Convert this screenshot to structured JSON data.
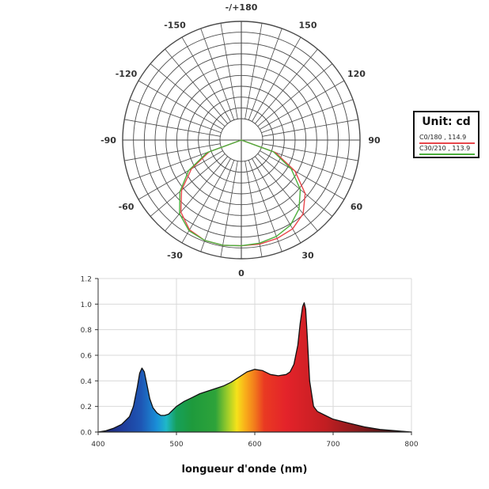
{
  "colors": {
    "polar_c0": "#e8474c",
    "polar_c30": "#4caf3c",
    "grid": "#4a4a4a"
  },
  "chart_data": [
    {
      "type": "polar",
      "unit_label": "Unit: cd",
      "angle_labels": [
        {
          "angle": 180,
          "text": "-/+180"
        },
        {
          "angle": 150,
          "text": "150"
        },
        {
          "angle": -150,
          "text": "-150"
        },
        {
          "angle": 120,
          "text": "120"
        },
        {
          "angle": -120,
          "text": "-120"
        },
        {
          "angle": 90,
          "text": "90"
        },
        {
          "angle": -90,
          "text": "-90"
        },
        {
          "angle": 60,
          "text": "60"
        },
        {
          "angle": -60,
          "text": "-60"
        },
        {
          "angle": 30,
          "text": "30"
        },
        {
          "angle": -30,
          "text": "-30"
        },
        {
          "angle": 0,
          "text": "0"
        }
      ],
      "series": [
        {
          "name": "C0/180 , 114.9",
          "color": "#e8474c",
          "angles": [
            -70,
            -60,
            -50,
            -40,
            -30,
            -20,
            -10,
            0,
            10,
            20,
            30,
            40,
            50,
            60,
            70
          ],
          "values": [
            0.32,
            0.54,
            0.73,
            0.88,
            0.97,
            1.0,
            1.0,
            0.99,
            0.99,
            0.98,
            0.96,
            0.9,
            0.78,
            0.58,
            0.34
          ]
        },
        {
          "name": "C30/210 , 113.9",
          "color": "#4caf3c",
          "angles": [
            -70,
            -60,
            -50,
            -40,
            -30,
            -20,
            -10,
            0,
            10,
            20,
            30,
            40,
            50,
            60,
            70
          ],
          "values": [
            0.34,
            0.57,
            0.75,
            0.9,
            0.98,
            1.0,
            1.0,
            0.99,
            0.98,
            0.96,
            0.92,
            0.84,
            0.72,
            0.54,
            0.32
          ]
        }
      ]
    },
    {
      "type": "area",
      "xlabel": "longueur d'onde (nm)",
      "ylabel": "",
      "xlim": [
        400,
        800
      ],
      "ylim": [
        0.0,
        1.2
      ],
      "x_ticks": [
        "400",
        "500",
        "600",
        "700",
        "800"
      ],
      "y_ticks": [
        "0.0",
        "0.2",
        "0.4",
        "0.6",
        "0.8",
        "1.0",
        "1.2"
      ],
      "grid": true,
      "fill": "spectrum",
      "x": [
        400,
        410,
        420,
        430,
        440,
        445,
        450,
        453,
        456,
        459,
        462,
        466,
        470,
        475,
        480,
        485,
        490,
        495,
        500,
        505,
        510,
        520,
        530,
        540,
        550,
        560,
        570,
        580,
        590,
        600,
        610,
        620,
        630,
        640,
        645,
        650,
        655,
        658,
        661,
        663,
        665,
        667,
        670,
        675,
        680,
        690,
        700,
        720,
        740,
        760,
        780,
        800
      ],
      "y": [
        0.0,
        0.01,
        0.03,
        0.06,
        0.12,
        0.2,
        0.35,
        0.46,
        0.5,
        0.47,
        0.38,
        0.26,
        0.19,
        0.15,
        0.13,
        0.13,
        0.14,
        0.17,
        0.2,
        0.22,
        0.24,
        0.27,
        0.3,
        0.32,
        0.34,
        0.36,
        0.39,
        0.43,
        0.47,
        0.49,
        0.48,
        0.45,
        0.44,
        0.45,
        0.47,
        0.53,
        0.68,
        0.85,
        0.98,
        1.01,
        0.96,
        0.75,
        0.4,
        0.2,
        0.16,
        0.13,
        0.1,
        0.07,
        0.04,
        0.02,
        0.01,
        0.0
      ]
    }
  ]
}
